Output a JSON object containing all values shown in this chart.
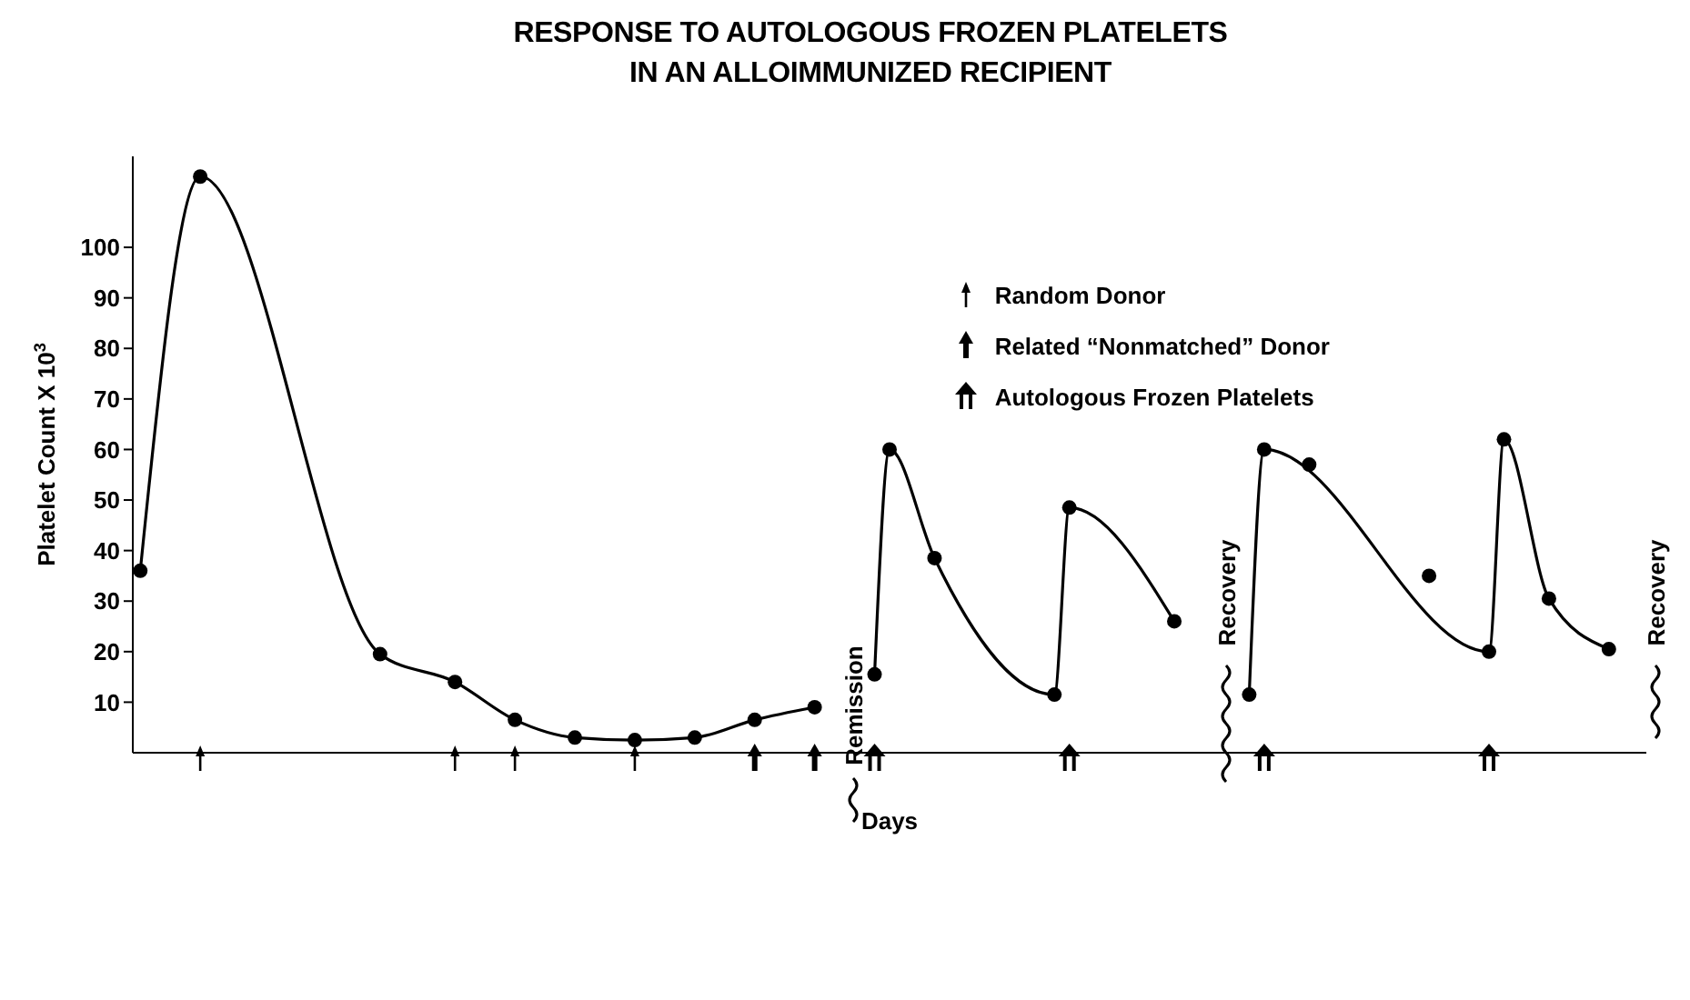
{
  "chart_data": {
    "type": "line",
    "title": "RESPONSE TO AUTOLOGOUS FROZEN PLATELETS\nIN AN ALLOIMMUNIZED RECIPIENT",
    "xlabel": "Days",
    "ylabel": "Platelet Count X 10$^{3}$",
    "annotations": [
      "Remission",
      "Recovery",
      "Recovery"
    ],
    "categories": [
      null,
      null,
      null,
      null,
      null,
      null,
      null,
      null,
      null,
      null,
      null,
      null,
      null,
      null,
      null,
      null,
      null,
      null,
      null,
      null,
      null,
      null,
      null,
      null,
      null,
      null,
      null,
      null,
      null,
      null,
      null,
      null,
      null,
      null,
      null,
      null,
      null,
      null,
      null,
      null,
      null,
      null,
      null,
      null,
      null,
      null,
      null,
      null,
      null,
      null,
      null,
      null,
      null,
      null,
      null,
      null,
      null,
      null,
      null,
      null,
      null,
      null,
      null,
      null,
      null,
      null,
      null,
      null,
      null,
      null,
      null,
      null,
      null,
      null,
      null,
      null,
      null,
      null,
      null,
      null,
      null,
      null,
      null,
      null,
      null,
      null,
      null,
      null,
      null,
      null,
      null,
      null,
      null,
      null,
      null,
      null,
      null,
      null,
      null,
      null,
      null
    ],
    "series": [
      {
        "type": "line",
        "marker": "circle",
        "color": "#000000",
        "values": [
          36,
          null,
          null,
          null,
          114,
          null,
          null,
          null,
          null,
          null,
          null,
          null,
          null,
          null,
          null,
          null,
          19.5,
          null,
          null,
          null,
          null,
          14,
          null,
          null,
          null,
          6.5,
          null,
          null,
          null,
          3,
          null,
          null,
          null,
          2.5,
          null,
          null,
          null,
          3,
          null,
          null,
          null,
          6.5,
          null,
          null,
          null,
          9,
          null,
          null,
          null,
          null,
          null,
          null,
          null,
          null,
          null,
          null,
          null,
          null,
          null,
          null,
          null,
          null,
          null,
          null,
          null,
          null,
          null,
          null,
          null,
          null,
          null,
          null,
          null,
          null,
          null,
          null,
          null,
          null,
          null,
          null,
          null,
          null,
          null,
          null,
          null,
          null,
          null,
          null,
          null,
          null,
          null,
          null,
          null,
          null,
          null,
          null,
          null,
          null,
          null,
          null,
          null
        ]
      },
      {
        "type": "line",
        "marker": "circle",
        "color": "#000000",
        "values": [
          null,
          null,
          null,
          null,
          null,
          null,
          null,
          null,
          null,
          null,
          null,
          null,
          null,
          null,
          null,
          null,
          null,
          null,
          null,
          null,
          null,
          null,
          null,
          null,
          null,
          null,
          null,
          null,
          null,
          null,
          null,
          null,
          null,
          null,
          null,
          null,
          null,
          null,
          null,
          null,
          null,
          null,
          null,
          null,
          null,
          null,
          null,
          null,
          null,
          15.5,
          60,
          null,
          null,
          38.5,
          null,
          null,
          null,
          null,
          null,
          null,
          null,
          11.5,
          48.5,
          null,
          null,
          null,
          null,
          null,
          null,
          26,
          null,
          null,
          null,
          null,
          null,
          null,
          null,
          null,
          null,
          null,
          null,
          null,
          null,
          null,
          null,
          null,
          null,
          null,
          null,
          null,
          null,
          null,
          null,
          null,
          null,
          null,
          null,
          null,
          null,
          null,
          null
        ]
      },
      {
        "type": "line",
        "marker": "circle",
        "color": "#000000",
        "values": [
          null,
          null,
          null,
          null,
          null,
          null,
          null,
          null,
          null,
          null,
          null,
          null,
          null,
          null,
          null,
          null,
          null,
          null,
          null,
          null,
          null,
          null,
          null,
          null,
          null,
          null,
          null,
          null,
          null,
          null,
          null,
          null,
          null,
          null,
          null,
          null,
          null,
          null,
          null,
          null,
          null,
          null,
          null,
          null,
          null,
          null,
          null,
          null,
          null,
          null,
          null,
          null,
          null,
          null,
          null,
          null,
          null,
          null,
          null,
          null,
          null,
          null,
          null,
          null,
          null,
          null,
          null,
          null,
          null,
          null,
          null,
          null,
          null,
          null,
          11.5,
          60,
          null,
          null,
          null,
          null,
          null,
          null,
          null,
          null,
          null,
          null,
          null,
          null,
          null,
          null,
          20,
          62,
          null,
          null,
          30.5,
          null,
          null,
          null,
          20.5,
          null,
          null
        ]
      },
      {
        "type": "scatter",
        "marker": "circle",
        "color": "#000000",
        "values": [
          null,
          null,
          null,
          null,
          null,
          null,
          null,
          null,
          null,
          null,
          null,
          null,
          null,
          null,
          null,
          null,
          null,
          null,
          null,
          null,
          null,
          null,
          null,
          null,
          null,
          null,
          null,
          null,
          null,
          null,
          null,
          null,
          null,
          null,
          null,
          null,
          null,
          null,
          null,
          null,
          null,
          null,
          null,
          null,
          null,
          null,
          null,
          null,
          null,
          null,
          null,
          null,
          null,
          null,
          null,
          null,
          null,
          null,
          null,
          null,
          null,
          null,
          null,
          null,
          null,
          null,
          null,
          null,
          null,
          null,
          null,
          null,
          null,
          null,
          null,
          null,
          null,
          null,
          57,
          null,
          null,
          null,
          null,
          null,
          null,
          null,
          35,
          null,
          null,
          null,
          null,
          null,
          null,
          null,
          null,
          null,
          null,
          null,
          null,
          null,
          null
        ]
      },
      {
        "type": "scatter",
        "name": "Random Donor",
        "color": "#000000",
        "values": [
          null,
          null,
          null,
          null,
          0,
          null,
          null,
          null,
          null,
          null,
          null,
          null,
          null,
          null,
          null,
          null,
          null,
          null,
          null,
          null,
          null,
          0,
          null,
          null,
          null,
          0,
          null,
          null,
          null,
          null,
          null,
          null,
          null,
          0,
          null,
          null,
          null,
          null,
          null,
          null,
          null,
          null,
          null,
          null,
          null,
          null,
          null,
          null,
          null,
          null,
          null,
          null,
          null,
          null,
          null,
          null,
          null,
          null,
          null,
          null,
          null,
          null,
          null,
          null,
          null,
          null,
          null,
          null,
          null,
          null,
          null,
          null,
          null,
          null,
          null,
          null,
          null,
          null,
          null,
          null,
          null,
          null,
          null,
          null,
          null,
          null,
          null,
          null,
          null,
          null,
          null,
          null,
          null,
          null,
          null,
          null,
          null,
          null,
          null,
          null,
          null
        ]
      },
      {
        "type": "scatter",
        "name": "Related “Nonmatched” Donor",
        "color": "#000000",
        "values": [
          null,
          null,
          null,
          null,
          null,
          null,
          null,
          null,
          null,
          null,
          null,
          null,
          null,
          null,
          null,
          null,
          null,
          null,
          null,
          null,
          null,
          null,
          null,
          null,
          null,
          null,
          null,
          null,
          null,
          null,
          null,
          null,
          null,
          null,
          null,
          null,
          null,
          null,
          null,
          null,
          null,
          0,
          null,
          null,
          null,
          0,
          null,
          null,
          null,
          null,
          null,
          null,
          null,
          null,
          null,
          null,
          null,
          null,
          null,
          null,
          null,
          null,
          null,
          null,
          null,
          null,
          null,
          null,
          null,
          null,
          null,
          null,
          null,
          null,
          null,
          null,
          null,
          null,
          null,
          null,
          null,
          null,
          null,
          null,
          null,
          null,
          null,
          null,
          null,
          null,
          null,
          null,
          null,
          null,
          null,
          null,
          null,
          null,
          null,
          null,
          null
        ]
      },
      {
        "type": "scatter",
        "name": "Autologous Frozen Platelets",
        "color": "#000000",
        "values": [
          null,
          null,
          null,
          null,
          null,
          null,
          null,
          null,
          null,
          null,
          null,
          null,
          null,
          null,
          null,
          null,
          null,
          null,
          null,
          null,
          null,
          null,
          null,
          null,
          null,
          null,
          null,
          null,
          null,
          null,
          null,
          null,
          null,
          null,
          null,
          null,
          null,
          null,
          null,
          null,
          null,
          null,
          null,
          null,
          null,
          null,
          null,
          null,
          null,
          0,
          null,
          null,
          null,
          null,
          null,
          null,
          null,
          null,
          null,
          null,
          null,
          null,
          0,
          null,
          null,
          null,
          null,
          null,
          null,
          null,
          null,
          null,
          null,
          null,
          null,
          0,
          null,
          null,
          null,
          null,
          null,
          null,
          null,
          null,
          null,
          null,
          null,
          null,
          null,
          null,
          0,
          null,
          null,
          null,
          null,
          null,
          null,
          null,
          null,
          null,
          null
        ]
      }
    ],
    "ylim": [
      0,
      118
    ],
    "yticks": [
      10,
      20,
      30,
      40,
      50,
      60,
      70,
      80,
      90,
      100
    ],
    "tick_labels": "y",
    "legend": "top right"
  }
}
